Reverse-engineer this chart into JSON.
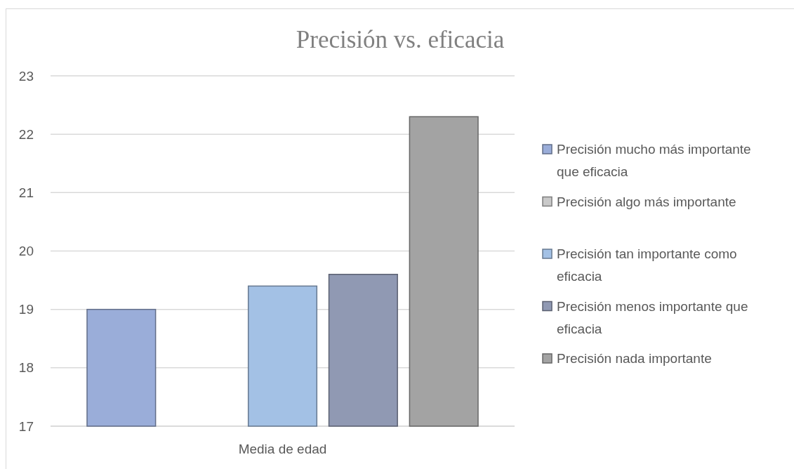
{
  "chart_data": {
    "type": "bar",
    "title": "Precisión vs. eficacia",
    "categories": [
      "Media de edad"
    ],
    "series": [
      {
        "name": "Precisión mucho más importante que eficacia",
        "color": "#9aadd9",
        "values": [
          19.0
        ]
      },
      {
        "name": "Precisión algo más importante",
        "color": "#c9c9c9",
        "values": [
          null
        ]
      },
      {
        "name": "Precisión tan importante como eficacia",
        "color": "#a3c1e5",
        "values": [
          19.4
        ]
      },
      {
        "name": "Precisión menos importante que eficacia",
        "color": "#9099b3",
        "values": [
          19.6
        ]
      },
      {
        "name": "Precisión nada importante",
        "color": "#a3a3a3",
        "values": [
          22.3
        ]
      }
    ],
    "ylim": [
      17,
      23
    ],
    "yticks": [
      17,
      18,
      19,
      20,
      21,
      22,
      23
    ],
    "grid": "y",
    "legend": "right"
  }
}
